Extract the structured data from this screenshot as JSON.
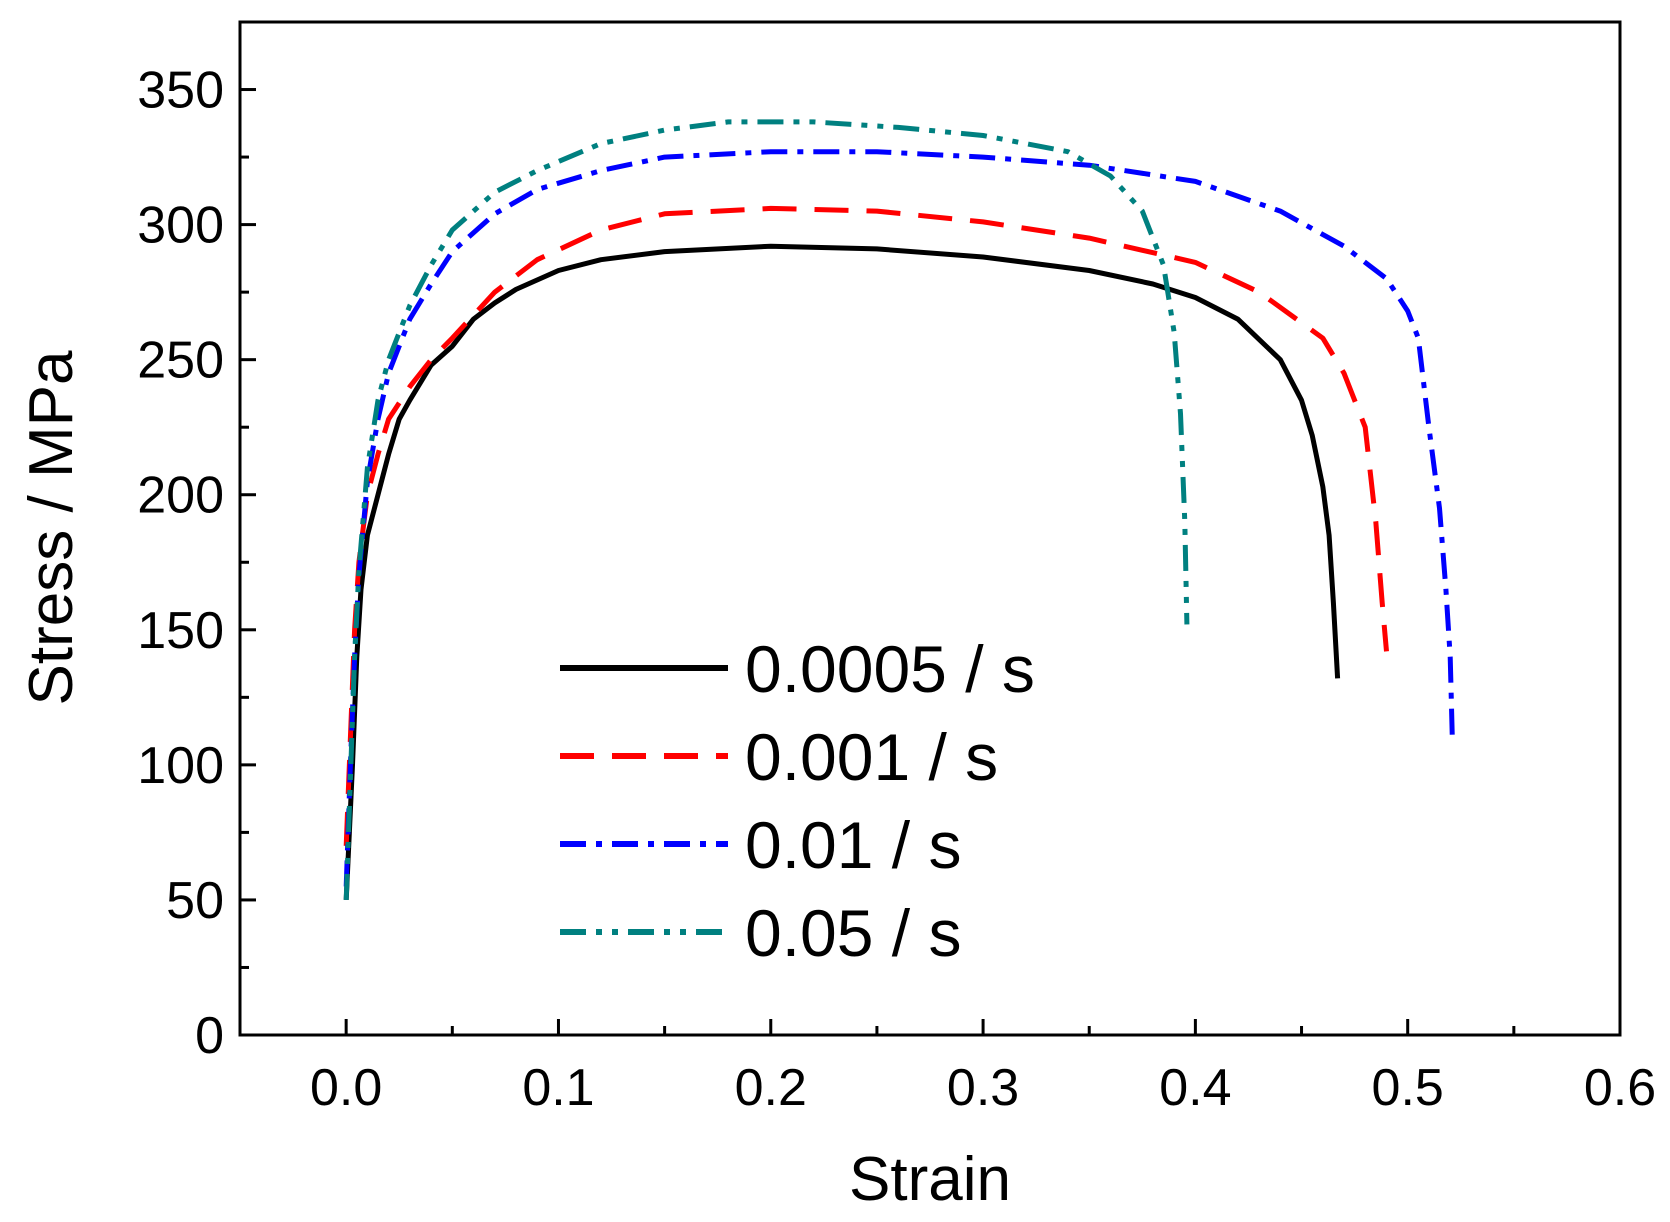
{
  "chart_data": {
    "type": "line",
    "title": "",
    "xlabel": "Strain",
    "ylabel": "Stress / MPa",
    "xlim": [
      -0.05,
      0.6
    ],
    "ylim": [
      0,
      375
    ],
    "xticks": [
      "0.0",
      "0.1",
      "0.2",
      "0.3",
      "0.4",
      "0.5",
      "0.6"
    ],
    "xtick_values": [
      0.0,
      0.1,
      0.2,
      0.3,
      0.4,
      0.5,
      0.6
    ],
    "yticks": [
      "0",
      "50",
      "100",
      "150",
      "200",
      "250",
      "300",
      "350"
    ],
    "ytick_values": [
      0,
      50,
      100,
      150,
      200,
      250,
      300,
      350
    ],
    "grid": false,
    "legend_position": "bottom-center",
    "series": [
      {
        "name": "0.0005 / s",
        "color": "#000000",
        "dash": "solid",
        "points": [
          [
            0.0,
            50
          ],
          [
            0.003,
            100
          ],
          [
            0.005,
            140
          ],
          [
            0.007,
            165
          ],
          [
            0.01,
            185
          ],
          [
            0.015,
            200
          ],
          [
            0.02,
            215
          ],
          [
            0.025,
            228
          ],
          [
            0.03,
            235
          ],
          [
            0.04,
            248
          ],
          [
            0.05,
            255
          ],
          [
            0.06,
            265
          ],
          [
            0.07,
            271
          ],
          [
            0.08,
            276
          ],
          [
            0.1,
            283
          ],
          [
            0.12,
            287
          ],
          [
            0.15,
            290
          ],
          [
            0.2,
            292
          ],
          [
            0.25,
            291
          ],
          [
            0.3,
            288
          ],
          [
            0.35,
            283
          ],
          [
            0.38,
            278
          ],
          [
            0.4,
            273
          ],
          [
            0.42,
            265
          ],
          [
            0.44,
            250
          ],
          [
            0.45,
            235
          ],
          [
            0.455,
            222
          ],
          [
            0.46,
            203
          ],
          [
            0.463,
            185
          ],
          [
            0.465,
            160
          ],
          [
            0.467,
            132
          ]
        ]
      },
      {
        "name": "0.001 / s",
        "color": "#ff0000",
        "dash": "dashed",
        "points": [
          [
            0.0,
            70
          ],
          [
            0.002,
            110
          ],
          [
            0.004,
            150
          ],
          [
            0.006,
            175
          ],
          [
            0.01,
            200
          ],
          [
            0.015,
            215
          ],
          [
            0.02,
            228
          ],
          [
            0.03,
            240
          ],
          [
            0.04,
            250
          ],
          [
            0.05,
            258
          ],
          [
            0.07,
            275
          ],
          [
            0.09,
            287
          ],
          [
            0.12,
            298
          ],
          [
            0.15,
            304
          ],
          [
            0.2,
            306
          ],
          [
            0.25,
            305
          ],
          [
            0.3,
            301
          ],
          [
            0.35,
            295
          ],
          [
            0.4,
            286
          ],
          [
            0.43,
            275
          ],
          [
            0.46,
            258
          ],
          [
            0.47,
            245
          ],
          [
            0.48,
            225
          ],
          [
            0.485,
            190
          ],
          [
            0.488,
            160
          ],
          [
            0.49,
            142
          ]
        ]
      },
      {
        "name": "0.01 / s",
        "color": "#0000ff",
        "dash": "dashdot",
        "points": [
          [
            0.0,
            55
          ],
          [
            0.002,
            100
          ],
          [
            0.004,
            140
          ],
          [
            0.006,
            170
          ],
          [
            0.01,
            205
          ],
          [
            0.015,
            228
          ],
          [
            0.02,
            245
          ],
          [
            0.03,
            265
          ],
          [
            0.04,
            278
          ],
          [
            0.05,
            290
          ],
          [
            0.07,
            304
          ],
          [
            0.09,
            313
          ],
          [
            0.12,
            320
          ],
          [
            0.15,
            325
          ],
          [
            0.2,
            327
          ],
          [
            0.25,
            327
          ],
          [
            0.3,
            325
          ],
          [
            0.35,
            322
          ],
          [
            0.4,
            316
          ],
          [
            0.44,
            305
          ],
          [
            0.47,
            292
          ],
          [
            0.49,
            280
          ],
          [
            0.5,
            268
          ],
          [
            0.505,
            258
          ],
          [
            0.51,
            225
          ],
          [
            0.515,
            195
          ],
          [
            0.518,
            165
          ],
          [
            0.52,
            140
          ],
          [
            0.521,
            110
          ]
        ]
      },
      {
        "name": "0.05 / s",
        "color": "#008080",
        "dash": "dashdotdot",
        "points": [
          [
            0.0,
            50
          ],
          [
            0.002,
            95
          ],
          [
            0.004,
            140
          ],
          [
            0.006,
            172
          ],
          [
            0.01,
            210
          ],
          [
            0.015,
            235
          ],
          [
            0.02,
            250
          ],
          [
            0.03,
            270
          ],
          [
            0.04,
            285
          ],
          [
            0.05,
            298
          ],
          [
            0.07,
            312
          ],
          [
            0.09,
            320
          ],
          [
            0.12,
            330
          ],
          [
            0.15,
            335
          ],
          [
            0.18,
            338
          ],
          [
            0.22,
            338
          ],
          [
            0.26,
            336
          ],
          [
            0.3,
            333
          ],
          [
            0.34,
            327
          ],
          [
            0.36,
            318
          ],
          [
            0.375,
            305
          ],
          [
            0.385,
            285
          ],
          [
            0.39,
            260
          ],
          [
            0.393,
            230
          ],
          [
            0.395,
            190
          ],
          [
            0.396,
            152
          ]
        ]
      }
    ]
  }
}
